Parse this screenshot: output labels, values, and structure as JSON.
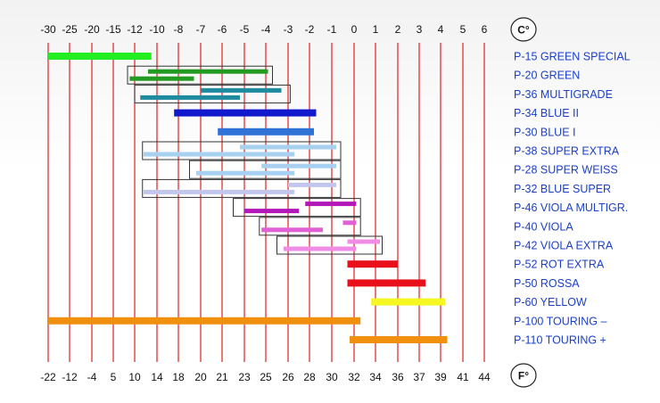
{
  "chart_data": {
    "type": "range-bar",
    "x_axis_celsius": [
      "-30",
      "-25",
      "-20",
      "-15",
      "-12",
      "-10",
      "-8",
      "-7",
      "-6",
      "-5",
      "-4",
      "-3",
      "-2",
      "-1",
      "0",
      "1",
      "2",
      "3",
      "4",
      "5",
      "6"
    ],
    "x_axis_fahrenheit": [
      "-22",
      "-12",
      "-4",
      "5",
      "10",
      "14",
      "18",
      "20",
      "21",
      "23",
      "25",
      "26",
      "28",
      "30",
      "32",
      "34",
      "36",
      "37",
      "39",
      "41",
      "44"
    ],
    "unit_top": "C°",
    "unit_bottom": "F°",
    "grid_color": "#e02020",
    "label_color": "#1a3fc9",
    "rows": [
      {
        "label": "P-15 GREEN SPECIAL",
        "color": "#22ee22",
        "box": null,
        "bars": [
          [
            -30,
            -10.5
          ]
        ]
      },
      {
        "label": "P-20 GREEN",
        "color": "#239b23",
        "box": [
          -13,
          -3.7
        ],
        "bars": [
          [
            -10.8,
            -3.9
          ],
          [
            -12.7,
            -7.3
          ]
        ]
      },
      {
        "label": "P-36 MULTIGRADE",
        "color": "#1e8c9e",
        "box": [
          -12,
          -2.9
        ],
        "bars": [
          [
            -7,
            -3.3
          ],
          [
            -11.5,
            -5.2
          ]
        ]
      },
      {
        "label": "P-34 BLUE II",
        "color": "#1218cc",
        "box": null,
        "bars": [
          [
            -8.4,
            -1.7
          ]
        ]
      },
      {
        "label": "P-30 BLUE I",
        "color": "#2f72d8",
        "box": null,
        "bars": [
          [
            -6.2,
            -1.8
          ]
        ]
      },
      {
        "label": "P-38 SUPER EXTRA",
        "color": "#a8d0f0",
        "box": [
          -11.3,
          -0.6
        ],
        "bars": [
          [
            -5.2,
            -0.8
          ],
          [
            -11.2,
            -2.7
          ]
        ]
      },
      {
        "label": "P-28 SUPER WEISS",
        "color": "#a8d0f0",
        "box": [
          -7.5,
          -0.6
        ],
        "bars": [
          [
            -4.2,
            -0.8
          ],
          [
            -7.2,
            -2.7
          ]
        ]
      },
      {
        "label": "P-32 BLUE SUPER",
        "color": "#c2c6ec",
        "box": [
          -11.3,
          -0.6
        ],
        "bars": [
          [
            -3,
            -0.8
          ],
          [
            -11.2,
            -2.7
          ]
        ]
      },
      {
        "label": "P-46 VIOLA MULTIGR.",
        "color": "#b118b7",
        "box": [
          -5.5,
          0.3
        ],
        "bars": [
          [
            -2.2,
            0.1
          ],
          [
            -5,
            -2.5
          ]
        ]
      },
      {
        "label": "P-40 VIOLA",
        "color": "#e060d6",
        "box": [
          -4.3,
          0.3
        ],
        "bars": [
          [
            -0.5,
            0.1
          ],
          [
            -4.2,
            -1.4
          ]
        ]
      },
      {
        "label": "P-42 VIOLA EXTRA",
        "color": "#f08ce6",
        "box": [
          -3.5,
          1.3
        ],
        "bars": [
          [
            -0.3,
            1.2
          ],
          [
            -3.2,
            0.1
          ]
        ]
      },
      {
        "label": "P-52 ROT EXTRA",
        "color": "#e8101a",
        "box": null,
        "bars": [
          [
            -0.3,
            2
          ]
        ]
      },
      {
        "label": "P-50 ROSSA",
        "color": "#e8101a",
        "box": null,
        "bars": [
          [
            -0.3,
            3.3
          ]
        ]
      },
      {
        "label": "P-60 YELLOW",
        "color": "#f6f622",
        "box": null,
        "bars": [
          [
            0.8,
            4.2
          ]
        ]
      },
      {
        "label": "P-100 TOURING –",
        "color": "#f0900e",
        "box": null,
        "bars": [
          [
            -30,
            0.3
          ]
        ]
      },
      {
        "label": "P-110 TOURING +",
        "color": "#f0900e",
        "box": null,
        "bars": [
          [
            -0.2,
            4.3
          ]
        ]
      }
    ]
  }
}
